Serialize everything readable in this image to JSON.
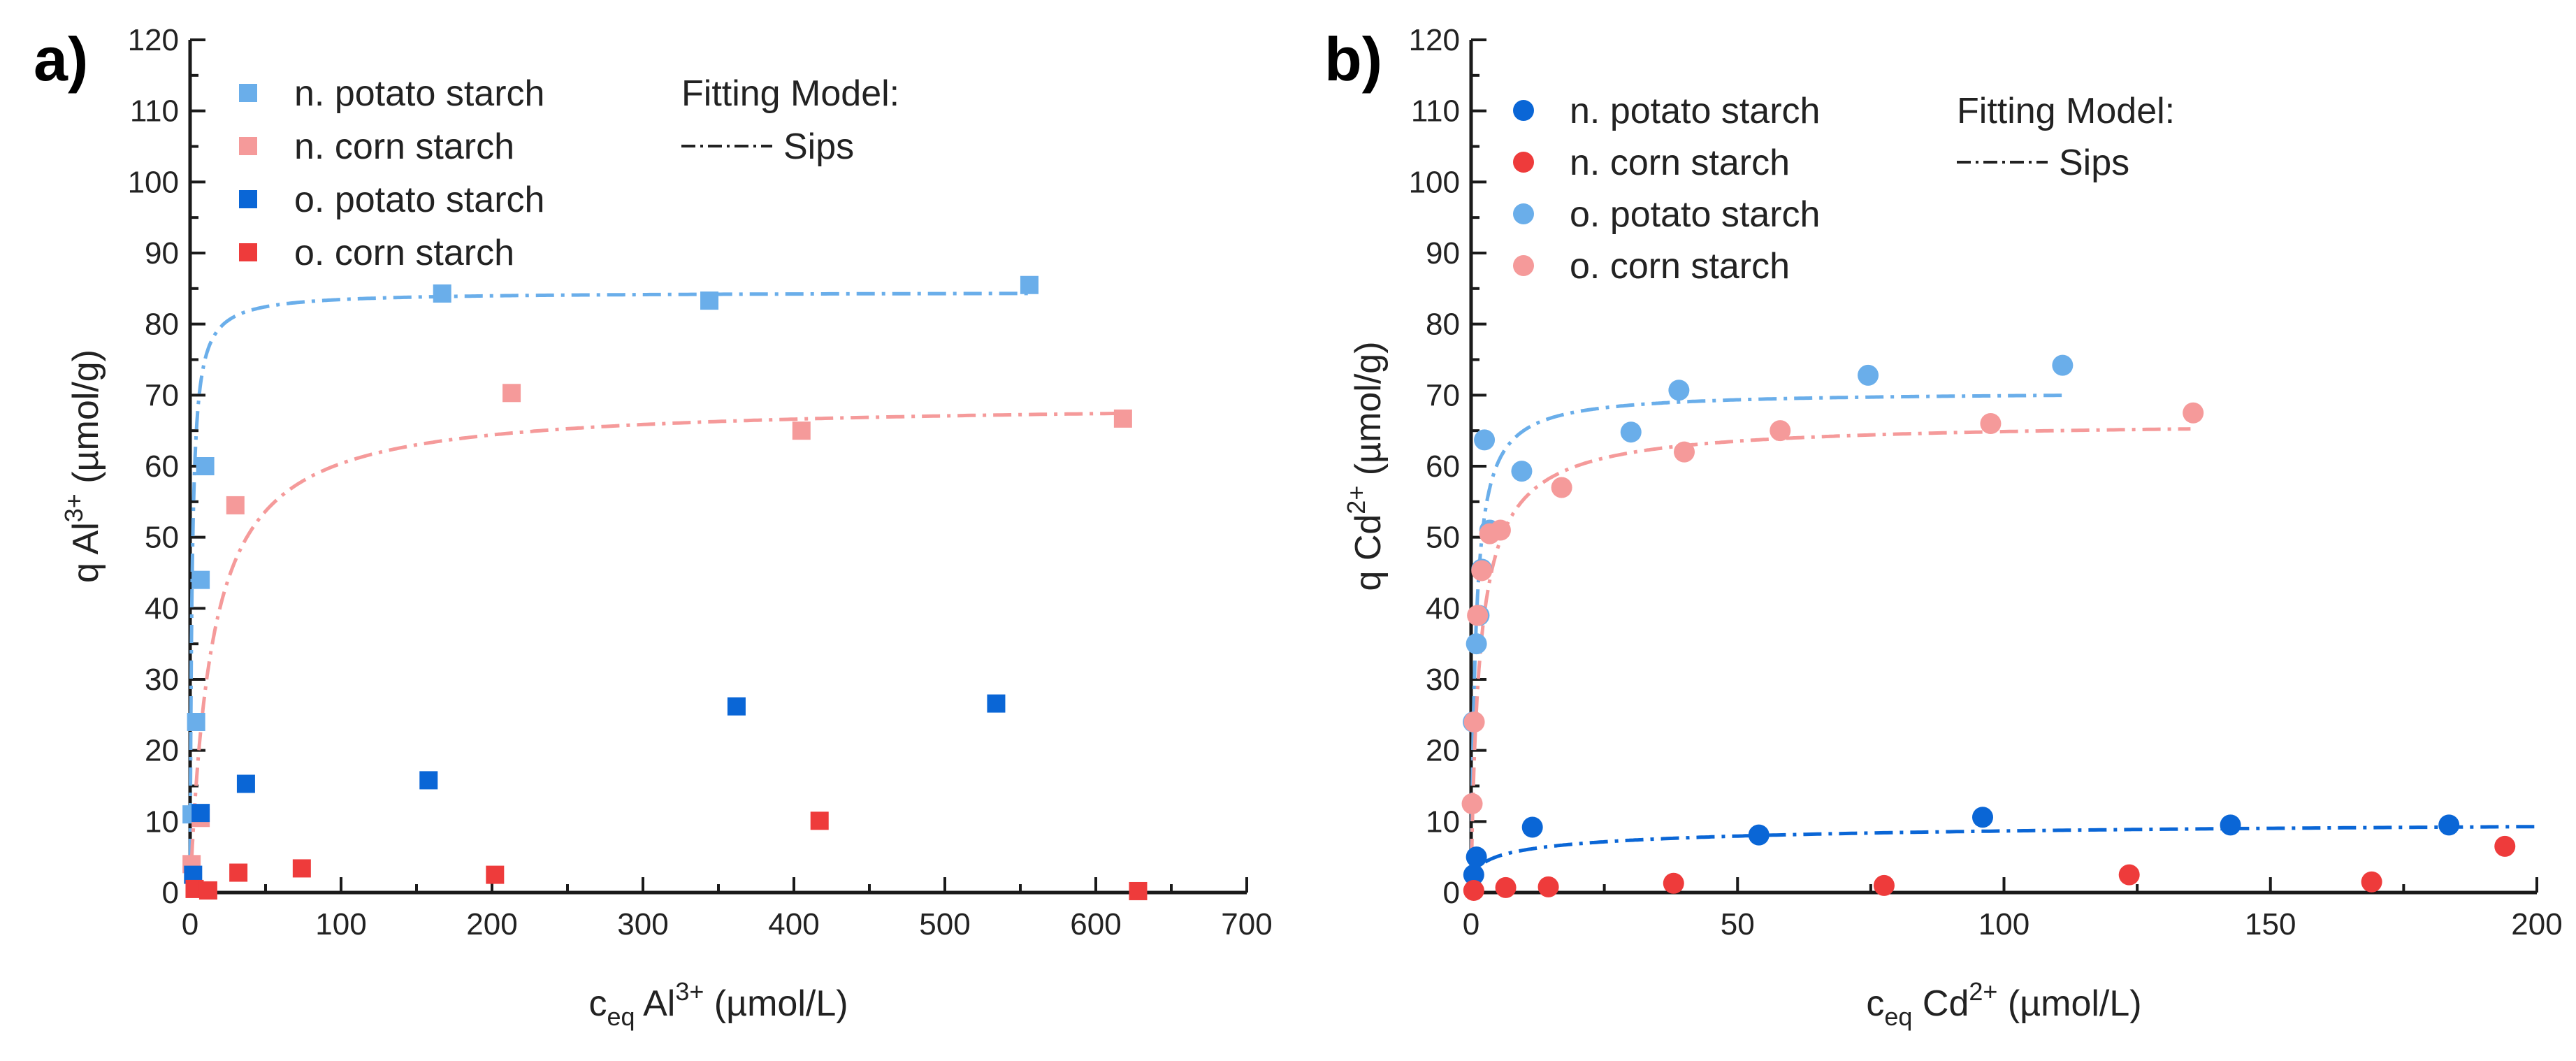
{
  "chart_data": [
    {
      "type": "scatter",
      "panel_label": "a)",
      "xlabel": {
        "base": "c",
        "sub": "eq",
        "mid": " Al",
        "sup": "3+",
        "tail": " (µmol/L)"
      },
      "ylabel": {
        "base": "q Al",
        "sup": "3+",
        "tail": " (µmol/g)"
      },
      "xlim": [
        0,
        700
      ],
      "ylim": [
        0,
        120
      ],
      "xticks": [
        0,
        100,
        200,
        300,
        400,
        500,
        600,
        700
      ],
      "yticks": [
        0,
        10,
        20,
        30,
        40,
        50,
        60,
        70,
        80,
        90,
        100,
        110,
        120
      ],
      "marker": "square",
      "legend_position": "top-left",
      "fitting_model_title": "Fitting Model:",
      "fitting_model_name": "Sips",
      "series": [
        {
          "name": "n. potato starch",
          "color": "#6aaeea",
          "x": [
            1,
            4,
            7,
            10,
            167,
            344,
            556
          ],
          "y": [
            11,
            24,
            44,
            60,
            84.3,
            83.3,
            85.5
          ],
          "fit": {
            "qmax": 84.5,
            "K": 0.8,
            "n": 1.0,
            "xmax": 556
          }
        },
        {
          "name": "n. corn starch",
          "color": "#f59a9a",
          "x": [
            1,
            7,
            30,
            213,
            405,
            618
          ],
          "y": [
            4,
            10.5,
            54.5,
            70.3,
            65,
            66.7
          ],
          "fit": {
            "qmax": 69,
            "K": 0.07,
            "n": 1.0,
            "xmax": 618
          }
        },
        {
          "name": "o. potato starch",
          "color": "#0a66d6",
          "x": [
            2,
            7,
            37,
            158,
            362,
            534
          ],
          "y": [
            2.5,
            11.2,
            15.3,
            15.8,
            26.2,
            26.6
          ]
        },
        {
          "name": "o. corn starch",
          "color": "#ee3b3b",
          "x": [
            3,
            12,
            32,
            74,
            202,
            417,
            628
          ],
          "y": [
            0.5,
            0.3,
            2.8,
            3.4,
            2.5,
            10.1,
            0.2
          ]
        }
      ]
    },
    {
      "type": "scatter",
      "panel_label": "b)",
      "xlabel": {
        "base": "c",
        "sub": "eq",
        "mid": " Cd",
        "sup": "2+",
        "tail": " (µmol/L)"
      },
      "ylabel": {
        "base": "q Cd",
        "sup": "2+",
        "tail": " (µmol/g)"
      },
      "xlim": [
        0,
        200
      ],
      "ylim": [
        0,
        120
      ],
      "xticks": [
        0,
        50,
        100,
        150,
        200
      ],
      "yticks": [
        0,
        10,
        20,
        30,
        40,
        50,
        60,
        70,
        80,
        90,
        100,
        110,
        120
      ],
      "marker": "circle",
      "legend_position": "top-left",
      "fitting_model_title": "Fitting Model:",
      "fitting_model_name": "Sips",
      "series": [
        {
          "name": "n. potato starch",
          "color": "#0a66d6",
          "x": [
            0.5,
            1,
            11.5,
            54,
            96,
            142.5,
            183.5
          ],
          "y": [
            2.5,
            5,
            9.2,
            8.1,
            10.6,
            9.5,
            9.5
          ],
          "fit": {
            "qmax": 11.5,
            "K": 0.12,
            "n": 0.45,
            "xmax": 200
          }
        },
        {
          "name": "n. corn starch",
          "color": "#ee3b3b",
          "x": [
            0.5,
            6.5,
            14.5,
            38,
            77.5,
            123.5,
            169,
            194
          ],
          "y": [
            0.3,
            0.7,
            0.8,
            1.3,
            1.0,
            2.5,
            1.5,
            6.5
          ]
        },
        {
          "name": "o. potato starch",
          "color": "#6aaeea",
          "x": [
            0.4,
            1.0,
            1.5,
            2.0,
            2.5,
            3.5,
            9.5,
            30,
            39,
            74.5,
            111
          ],
          "y": [
            24,
            35,
            39,
            45.5,
            63.7,
            51,
            59.3,
            64.8,
            70.7,
            72.8,
            74.2
          ],
          "fit": {
            "qmax": 70.5,
            "K": 1.2,
            "n": 1.0,
            "xmax": 111
          }
        },
        {
          "name": "o. corn starch",
          "color": "#f59a9a",
          "x": [
            0.2,
            0.6,
            1.2,
            2.0,
            3.5,
            5.5,
            17,
            40,
            58,
            97.5,
            135.5
          ],
          "y": [
            12.5,
            24,
            39,
            45.3,
            50.5,
            51,
            57,
            62,
            65,
            66,
            67.5
          ],
          "fit": {
            "qmax": 66.5,
            "K": 0.6,
            "n": 0.9,
            "xmax": 135
          }
        }
      ]
    }
  ]
}
